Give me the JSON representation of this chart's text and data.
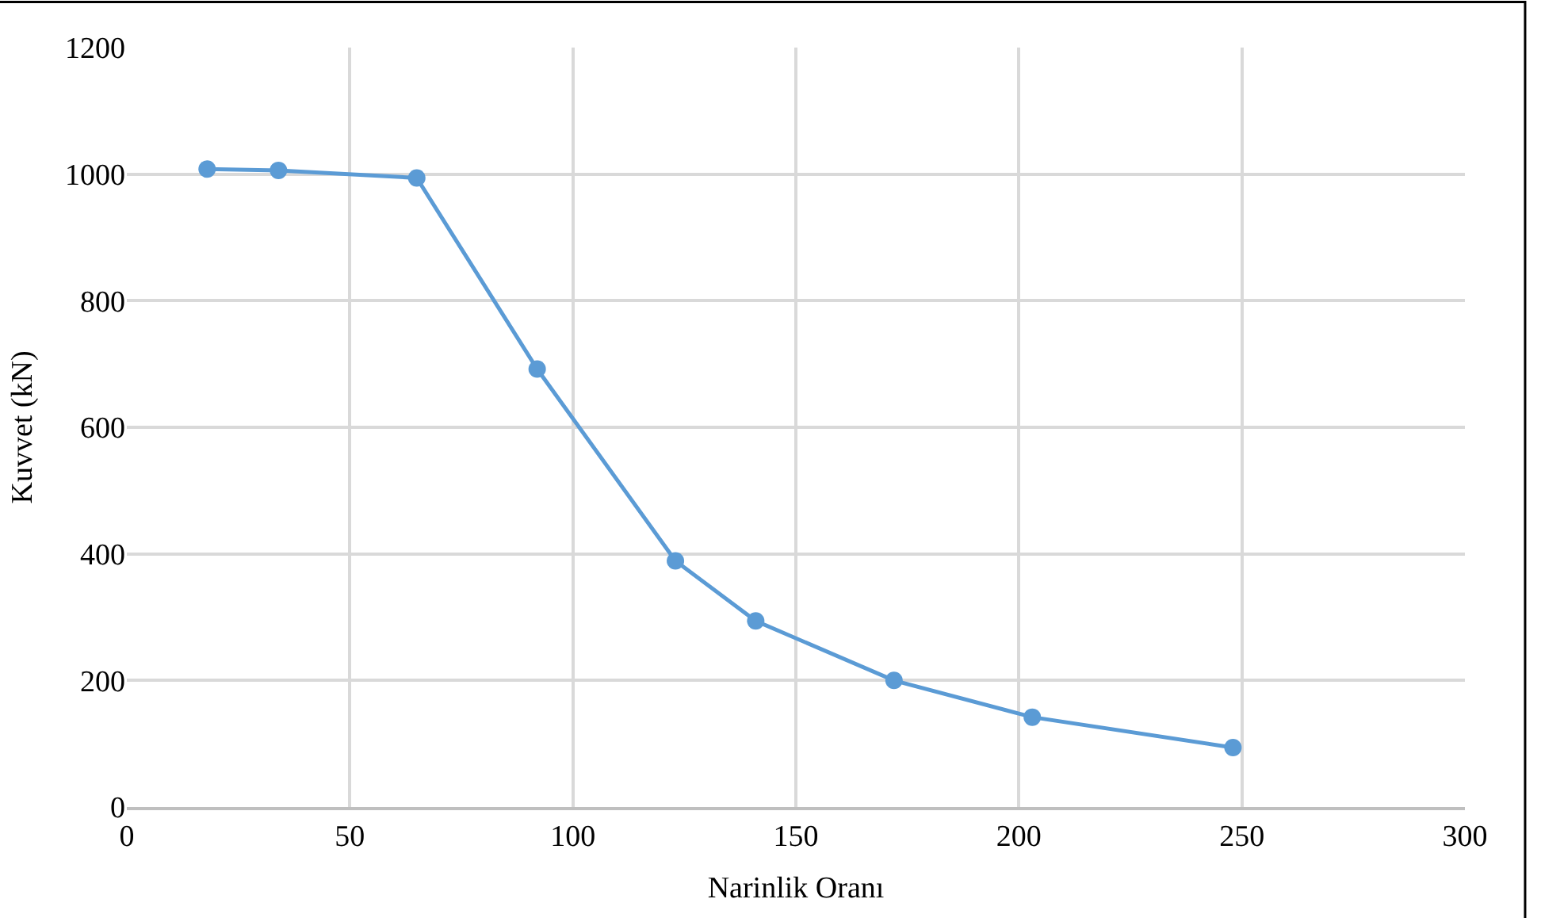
{
  "chart_data": {
    "type": "line",
    "xlabel": "Narinlik Oranı",
    "ylabel": "Kuvvet (kN)",
    "x": [
      18,
      34,
      65,
      92,
      123,
      141,
      172,
      203,
      248
    ],
    "series": [
      {
        "color": "#5b9bd5",
        "values": [
          1008,
          1006,
          994,
          692,
          389,
          294,
          200,
          142,
          94
        ]
      }
    ],
    "xlim": [
      0,
      300
    ],
    "xticks": [
      0,
      50,
      100,
      150,
      200,
      250,
      300
    ],
    "ylim": [
      0,
      1200
    ],
    "yticks": [
      0,
      200,
      400,
      600,
      800,
      1000,
      1200
    ],
    "grid": true,
    "legend": false,
    "marker": "circle",
    "line_style": "solid"
  }
}
